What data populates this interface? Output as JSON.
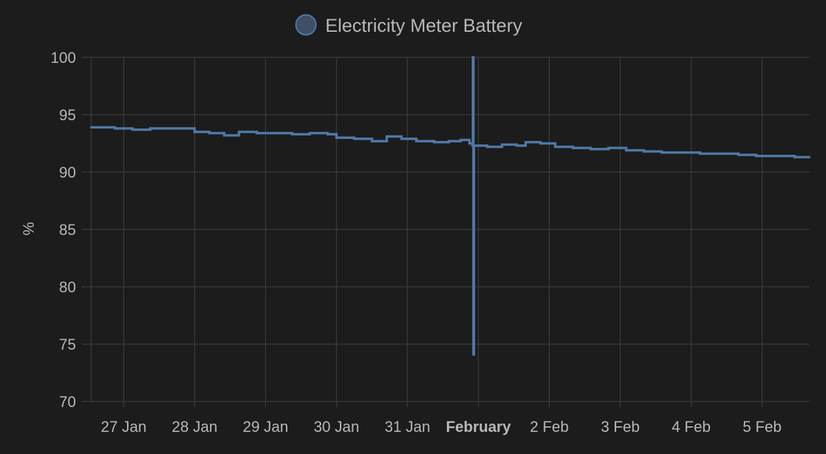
{
  "colors": {
    "background": "#1c1c1c",
    "grid": "#3d3d3d",
    "text": "#b8b8b8",
    "series": "#4f79a8",
    "legend_fill": "#3e4f66"
  },
  "chart_data": {
    "type": "line",
    "title": "",
    "xlabel": "",
    "ylabel": "%",
    "ylim": [
      70,
      100
    ],
    "yticks": [
      100,
      95,
      90,
      85,
      80,
      75,
      70
    ],
    "grid": true,
    "legend_position": "top-center",
    "x_range": [
      "2025-01-26T13:00",
      "2025-02-05T16:00"
    ],
    "xticks": [
      {
        "x": "2025-01-27T00:00",
        "label": "27 Jan",
        "bold": false
      },
      {
        "x": "2025-01-28T00:00",
        "label": "28 Jan",
        "bold": false
      },
      {
        "x": "2025-01-29T00:00",
        "label": "29 Jan",
        "bold": false
      },
      {
        "x": "2025-01-30T00:00",
        "label": "30 Jan",
        "bold": false
      },
      {
        "x": "2025-01-31T00:00",
        "label": "31 Jan",
        "bold": false
      },
      {
        "x": "2025-02-01T00:00",
        "label": "February",
        "bold": true
      },
      {
        "x": "2025-02-02T00:00",
        "label": "2 Feb",
        "bold": false
      },
      {
        "x": "2025-02-03T00:00",
        "label": "3 Feb",
        "bold": false
      },
      {
        "x": "2025-02-04T00:00",
        "label": "4 Feb",
        "bold": false
      },
      {
        "x": "2025-02-05T00:00",
        "label": "5 Feb",
        "bold": false
      }
    ],
    "series": [
      {
        "name": "Electricity Meter Battery",
        "step": true,
        "points": [
          [
            "2025-01-26T13:00",
            93.9
          ],
          [
            "2025-01-26T21:00",
            93.8
          ],
          [
            "2025-01-27T03:00",
            93.7
          ],
          [
            "2025-01-27T09:00",
            93.8
          ],
          [
            "2025-01-27T15:00",
            93.8
          ],
          [
            "2025-01-27T20:00",
            93.8
          ],
          [
            "2025-01-28T00:00",
            93.5
          ],
          [
            "2025-01-28T05:00",
            93.4
          ],
          [
            "2025-01-28T10:00",
            93.2
          ],
          [
            "2025-01-28T15:00",
            93.5
          ],
          [
            "2025-01-28T21:00",
            93.4
          ],
          [
            "2025-01-29T03:00",
            93.4
          ],
          [
            "2025-01-29T09:00",
            93.3
          ],
          [
            "2025-01-29T15:00",
            93.4
          ],
          [
            "2025-01-29T21:00",
            93.3
          ],
          [
            "2025-01-30T00:00",
            93.0
          ],
          [
            "2025-01-30T06:00",
            92.9
          ],
          [
            "2025-01-30T12:00",
            92.7
          ],
          [
            "2025-01-30T17:00",
            93.1
          ],
          [
            "2025-01-30T22:00",
            92.9
          ],
          [
            "2025-01-31T03:00",
            92.7
          ],
          [
            "2025-01-31T09:00",
            92.6
          ],
          [
            "2025-01-31T14:00",
            92.7
          ],
          [
            "2025-01-31T18:00",
            92.8
          ],
          [
            "2025-01-31T21:00",
            92.5
          ],
          [
            "2025-01-31T22:00",
            92.3
          ],
          [
            "2025-01-31T22:10",
            100
          ],
          [
            "2025-01-31T22:20",
            74.1
          ],
          [
            "2025-01-31T22:30",
            92.3
          ],
          [
            "2025-02-01T03:00",
            92.2
          ],
          [
            "2025-02-01T08:00",
            92.4
          ],
          [
            "2025-02-01T13:00",
            92.3
          ],
          [
            "2025-02-01T16:00",
            92.6
          ],
          [
            "2025-02-01T21:00",
            92.5
          ],
          [
            "2025-02-02T02:00",
            92.2
          ],
          [
            "2025-02-02T08:00",
            92.1
          ],
          [
            "2025-02-02T14:00",
            92.0
          ],
          [
            "2025-02-02T20:00",
            92.1
          ],
          [
            "2025-02-03T02:00",
            91.9
          ],
          [
            "2025-02-03T08:00",
            91.8
          ],
          [
            "2025-02-03T14:00",
            91.7
          ],
          [
            "2025-02-03T20:00",
            91.7
          ],
          [
            "2025-02-04T03:00",
            91.6
          ],
          [
            "2025-02-04T10:00",
            91.6
          ],
          [
            "2025-02-04T16:00",
            91.5
          ],
          [
            "2025-02-04T22:00",
            91.4
          ],
          [
            "2025-02-05T05:00",
            91.4
          ],
          [
            "2025-02-05T11:00",
            91.3
          ],
          [
            "2025-02-05T16:00",
            91.3
          ]
        ]
      }
    ]
  }
}
